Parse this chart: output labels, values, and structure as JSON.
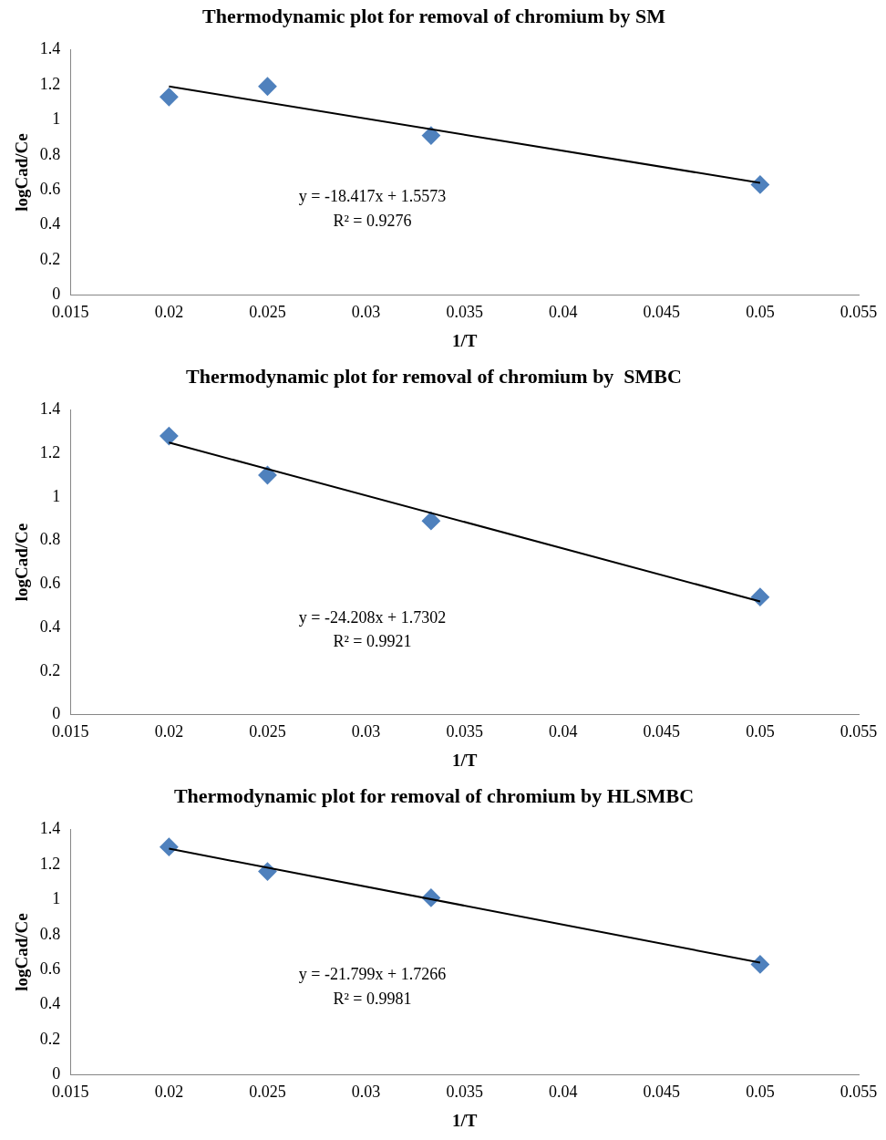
{
  "chart_data": [
    {
      "type": "scatter",
      "title": "Thermodynamic plot for removal of chromium by SM",
      "xlabel": "1/T",
      "ylabel": "logCad/Ce",
      "marker": "diamond",
      "grid": false,
      "legend": false,
      "xlim": [
        0.015,
        0.055
      ],
      "xticks": [
        0.015,
        0.02,
        0.025,
        0.03,
        0.035,
        0.04,
        0.045,
        0.05,
        0.055
      ],
      "ylim": [
        0,
        1.4
      ],
      "yticks": [
        0,
        0.2,
        0.4,
        0.6,
        0.8,
        1,
        1.2,
        1.4
      ],
      "series": [
        {
          "type": "scatter",
          "color": "#4f81bd",
          "x": [
            0.02,
            0.025,
            0.0333,
            0.05
          ],
          "values": [
            1.13,
            1.19,
            0.91,
            0.63
          ]
        },
        {
          "type": "line",
          "color": "#000000",
          "marker": "none",
          "x": [
            0.02,
            0.05
          ],
          "values": [
            1.19,
            0.64
          ]
        }
      ],
      "annotations": [
        "y = -18.417x + 1.5573",
        "R² = 0.9276"
      ]
    },
    {
      "type": "scatter",
      "title": "Thermodynamic plot for removal of chromium by  SMBC",
      "xlabel": "1/T",
      "ylabel": "logCad/Ce",
      "marker": "diamond",
      "grid": false,
      "legend": false,
      "xlim": [
        0.015,
        0.055
      ],
      "xticks": [
        0.015,
        0.02,
        0.025,
        0.03,
        0.035,
        0.04,
        0.045,
        0.05,
        0.055
      ],
      "ylim": [
        0,
        1.4
      ],
      "yticks": [
        0,
        0.2,
        0.4,
        0.6,
        0.8,
        1,
        1.2,
        1.4
      ],
      "series": [
        {
          "type": "scatter",
          "color": "#4f81bd",
          "x": [
            0.02,
            0.025,
            0.0333,
            0.05
          ],
          "values": [
            1.28,
            1.1,
            0.89,
            0.54
          ]
        },
        {
          "type": "line",
          "color": "#000000",
          "marker": "none",
          "x": [
            0.02,
            0.05
          ],
          "values": [
            1.25,
            0.52
          ]
        }
      ],
      "annotations": [
        "y = -24.208x + 1.7302",
        "R² = 0.9921"
      ]
    },
    {
      "type": "scatter",
      "title": "Thermodynamic plot for removal of chromium by HLSMBC",
      "xlabel": "1/T",
      "ylabel": "logCad/Ce",
      "marker": "diamond",
      "grid": false,
      "legend": false,
      "xlim": [
        0.015,
        0.055
      ],
      "xticks": [
        0.015,
        0.02,
        0.025,
        0.03,
        0.035,
        0.04,
        0.045,
        0.05,
        0.055
      ],
      "ylim": [
        0,
        1.4
      ],
      "yticks": [
        0,
        0.2,
        0.4,
        0.6,
        0.8,
        1,
        1.2,
        1.4
      ],
      "series": [
        {
          "type": "scatter",
          "color": "#4f81bd",
          "x": [
            0.02,
            0.025,
            0.0333,
            0.05
          ],
          "values": [
            1.3,
            1.16,
            1.01,
            0.63
          ]
        },
        {
          "type": "line",
          "color": "#000000",
          "marker": "none",
          "x": [
            0.02,
            0.05
          ],
          "values": [
            1.29,
            0.64
          ]
        }
      ],
      "annotations": [
        "y = -21.799x + 1.7266",
        "R² = 0.9981"
      ]
    }
  ]
}
